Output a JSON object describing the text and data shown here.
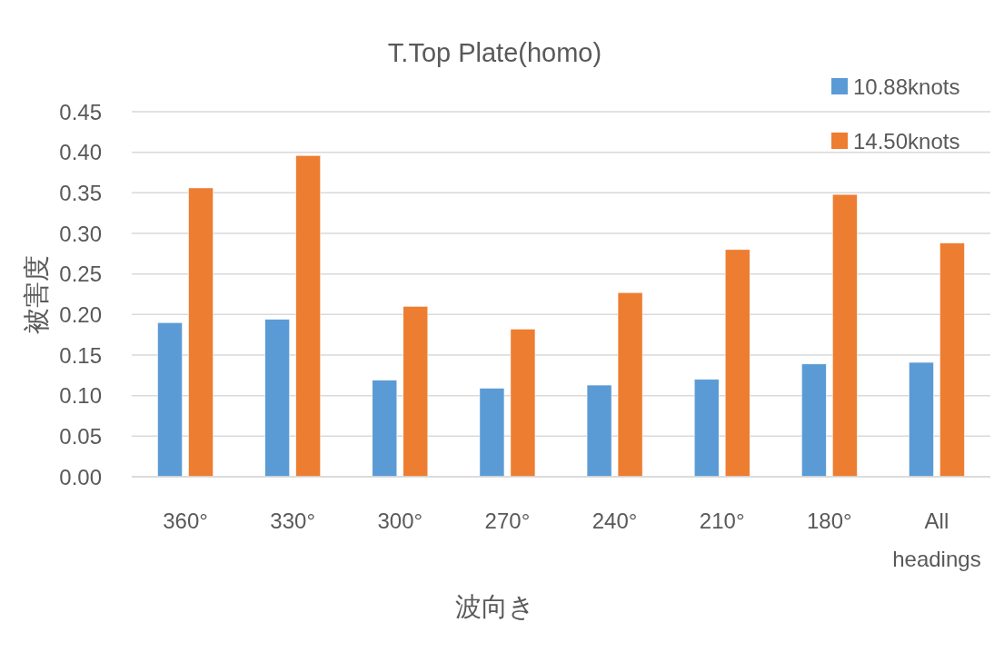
{
  "chart_data": {
    "type": "bar",
    "title": "T.Top Plate(homo)",
    "xlabel": "波向き",
    "ylabel": "被害度",
    "categories": [
      "360°",
      "330°",
      "300°",
      "270°",
      "240°",
      "210°",
      "180°",
      "All headings"
    ],
    "series": [
      {
        "name": "10.88knots",
        "color": "#5b9bd5",
        "values": [
          0.19,
          0.194,
          0.119,
          0.109,
          0.113,
          0.12,
          0.139,
          0.141
        ]
      },
      {
        "name": "14.50knots",
        "color": "#ed7d31",
        "values": [
          0.356,
          0.396,
          0.21,
          0.182,
          0.227,
          0.28,
          0.348,
          0.288
        ]
      }
    ],
    "ylim": [
      0,
      0.45
    ],
    "yticks": [
      {
        "value": 0,
        "label": "0.00"
      },
      {
        "value": 0.05,
        "label": "0.05"
      },
      {
        "value": 0.1,
        "label": "0.10"
      },
      {
        "value": 0.15,
        "label": "0.15"
      },
      {
        "value": 0.2,
        "label": "0.20"
      },
      {
        "value": 0.25,
        "label": "0.25"
      },
      {
        "value": 0.3,
        "label": "0.30"
      },
      {
        "value": 0.35,
        "label": "0.35"
      },
      {
        "value": 0.4,
        "label": "0.40"
      },
      {
        "value": 0.45,
        "label": "0.45"
      }
    ],
    "grid": "y",
    "legend": "top right"
  }
}
